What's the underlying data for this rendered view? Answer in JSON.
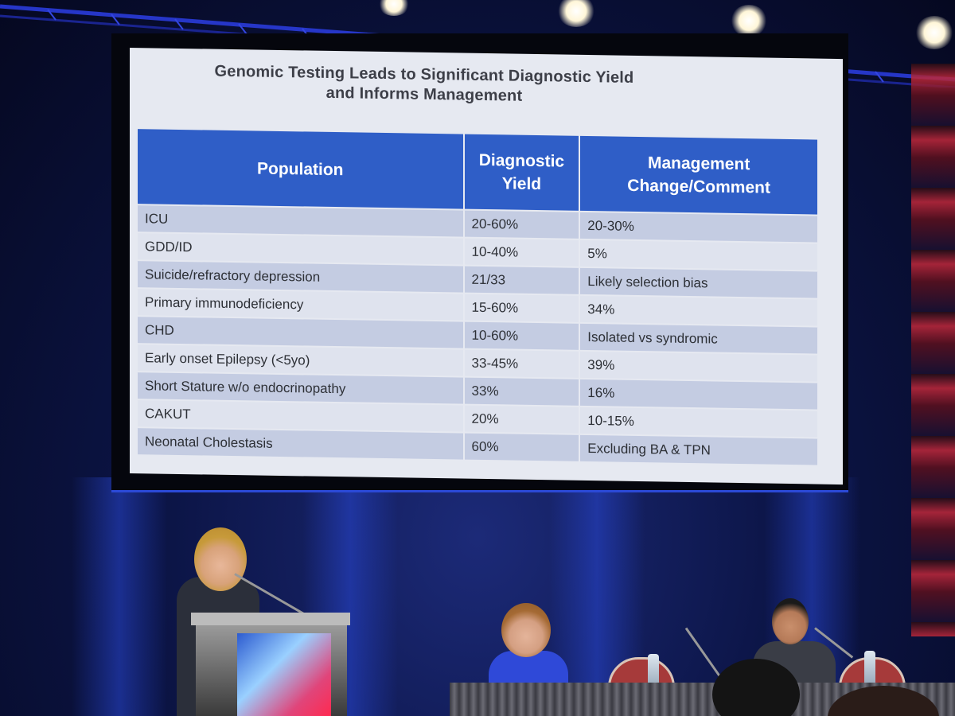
{
  "slide": {
    "title_line1": "Genomic Testing Leads to Significant Diagnostic Yield",
    "title_line2": "and Informs Management",
    "columns": [
      "Population",
      "Diagnostic Yield",
      "Management Change/Comment"
    ],
    "rows": [
      {
        "population": "ICU",
        "yield": "20-60%",
        "comment": "20-30%"
      },
      {
        "population": "GDD/ID",
        "yield": "10-40%",
        "comment": "5%"
      },
      {
        "population": "Suicide/refractory depression",
        "yield": "21/33",
        "comment": "Likely selection bias"
      },
      {
        "population": "Primary immunodeficiency",
        "yield": "15-60%",
        "comment": "34%"
      },
      {
        "population": "CHD",
        "yield": "10-60%",
        "comment": "Isolated vs  syndromic"
      },
      {
        "population": "Early onset Epilepsy (<5yo)",
        "yield": "33-45%",
        "comment": "39%"
      },
      {
        "population": "Short Stature w/o endocrinopathy",
        "yield": "33%",
        "comment": "16%"
      },
      {
        "population": "CAKUT",
        "yield": "20%",
        "comment": "10-15%"
      },
      {
        "population": "Neonatal Cholestasis",
        "yield": "60%",
        "comment": "Excluding BA & TPN"
      }
    ]
  },
  "colors": {
    "header_blue": "#2f5ec7",
    "row_dark": "#c4cce2",
    "row_light": "#dfe3ee",
    "stage_blue": "#1c2a78"
  }
}
